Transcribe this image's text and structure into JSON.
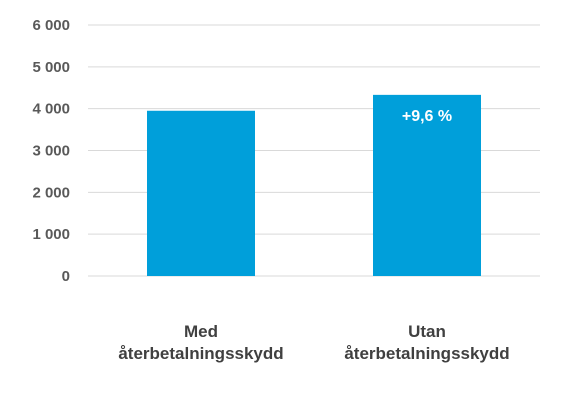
{
  "chart_data": {
    "type": "bar",
    "title": "",
    "xlabel": "",
    "ylabel": "",
    "categories": [
      [
        "Med",
        "återbetalningsskydd"
      ],
      [
        "Utan",
        "återbetalningsskydd"
      ]
    ],
    "values": [
      3950,
      4330
    ],
    "data_labels": [
      "",
      "+9,6 %"
    ],
    "ylim": [
      0,
      6000
    ],
    "yticks": [
      0,
      1000,
      2000,
      3000,
      4000,
      5000,
      6000
    ],
    "ytick_labels": [
      "0",
      "1 000",
      "2 000",
      "3 000",
      "4 000",
      "5 000",
      "6 000"
    ],
    "grid": true,
    "legend": "none",
    "colors": {
      "bar": "#009fda",
      "grid": "#d9d9d9",
      "tick_text": "#595959",
      "category_text": "#404040",
      "data_label_text": "#ffffff"
    }
  }
}
